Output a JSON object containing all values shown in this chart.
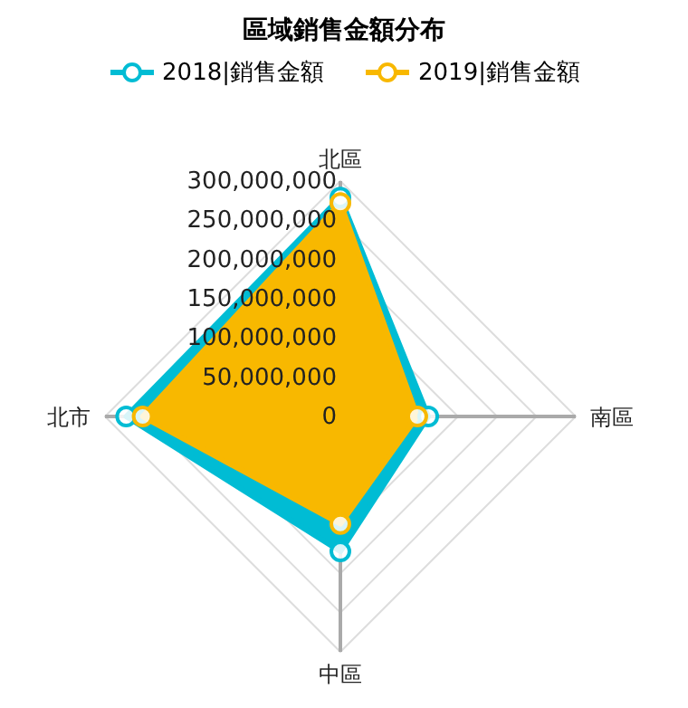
{
  "chart_data": {
    "type": "radar",
    "title": "區域銷售金額分布",
    "categories": [
      "北區",
      "南區",
      "中區",
      "北市"
    ],
    "series": [
      {
        "name": "2018|銷售金額",
        "color": "#00bcd4",
        "values": [
          279000000,
          112000000,
          172000000,
          273000000
        ]
      },
      {
        "name": "2019|銷售金額",
        "color": "#f8b800",
        "values": [
          272000000,
          98000000,
          137000000,
          252000000
        ]
      }
    ],
    "ylim": [
      0,
      300000000
    ],
    "yticks": [
      0,
      {
        "value": 50000000,
        "label": "50,000,000"
      },
      {
        "value": 100000000,
        "label": "100,000,000"
      },
      {
        "value": 150000000,
        "label": "150,000,000"
      },
      {
        "value": 200000000,
        "label": "200,000,000"
      },
      {
        "value": 250000000,
        "label": "250,000,000"
      },
      {
        "value": 300000000,
        "label": "300,000,000"
      }
    ],
    "grid": true,
    "legend": "top",
    "marker": "circle"
  }
}
